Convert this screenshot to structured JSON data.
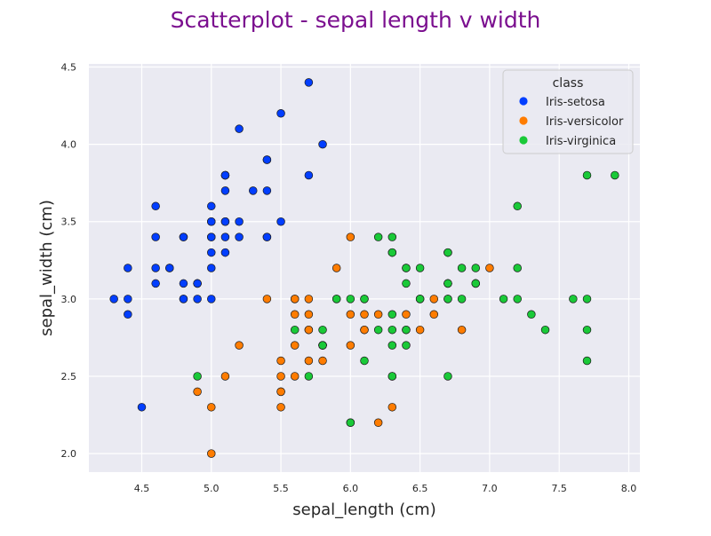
{
  "chart_data": {
    "type": "scatter",
    "title": "Scatterplot - sepal length v width",
    "title_color": "#7b0f8f",
    "xlabel": "sepal_length (cm)",
    "ylabel": "sepal_width (cm)",
    "xlim": [
      4.12,
      8.08
    ],
    "ylim": [
      1.88,
      4.52
    ],
    "xticks": [
      "4.5",
      "5.0",
      "5.5",
      "6.0",
      "6.5",
      "7.0",
      "7.5",
      "8.0"
    ],
    "yticks": [
      "2.0",
      "2.5",
      "3.0",
      "3.5",
      "4.0",
      "4.5"
    ],
    "grid": true,
    "background": "#eaeaf2",
    "legend": {
      "title": "class",
      "placement": "top-right"
    },
    "series": [
      {
        "name": "Iris-setosa",
        "color": "#023eff",
        "points": [
          [
            5.1,
            3.5
          ],
          [
            4.9,
            3.0
          ],
          [
            4.7,
            3.2
          ],
          [
            4.6,
            3.1
          ],
          [
            5.0,
            3.6
          ],
          [
            5.4,
            3.9
          ],
          [
            4.6,
            3.4
          ],
          [
            5.0,
            3.4
          ],
          [
            4.4,
            2.9
          ],
          [
            4.9,
            3.1
          ],
          [
            5.4,
            3.7
          ],
          [
            4.8,
            3.4
          ],
          [
            4.8,
            3.0
          ],
          [
            4.3,
            3.0
          ],
          [
            5.8,
            4.0
          ],
          [
            5.7,
            4.4
          ],
          [
            5.4,
            3.9
          ],
          [
            5.1,
            3.5
          ],
          [
            5.7,
            3.8
          ],
          [
            5.1,
            3.8
          ],
          [
            5.4,
            3.4
          ],
          [
            5.1,
            3.7
          ],
          [
            4.6,
            3.6
          ],
          [
            5.1,
            3.3
          ],
          [
            4.8,
            3.4
          ],
          [
            5.0,
            3.0
          ],
          [
            5.0,
            3.4
          ],
          [
            5.2,
            3.5
          ],
          [
            5.2,
            3.4
          ],
          [
            4.7,
            3.2
          ],
          [
            4.8,
            3.1
          ],
          [
            5.4,
            3.4
          ],
          [
            5.2,
            4.1
          ],
          [
            5.5,
            4.2
          ],
          [
            4.9,
            3.1
          ],
          [
            5.0,
            3.2
          ],
          [
            5.5,
            3.5
          ],
          [
            4.9,
            3.1
          ],
          [
            4.4,
            3.0
          ],
          [
            5.1,
            3.4
          ],
          [
            5.0,
            3.5
          ],
          [
            4.5,
            2.3
          ],
          [
            4.4,
            3.2
          ],
          [
            5.0,
            3.5
          ],
          [
            5.1,
            3.8
          ],
          [
            4.8,
            3.0
          ],
          [
            5.1,
            3.8
          ],
          [
            4.6,
            3.2
          ],
          [
            5.3,
            3.7
          ],
          [
            5.0,
            3.3
          ]
        ]
      },
      {
        "name": "Iris-versicolor",
        "color": "#ff7c00",
        "points": [
          [
            7.0,
            3.2
          ],
          [
            6.4,
            3.2
          ],
          [
            6.9,
            3.1
          ],
          [
            5.5,
            2.3
          ],
          [
            6.5,
            2.8
          ],
          [
            5.7,
            2.8
          ],
          [
            6.3,
            3.3
          ],
          [
            4.9,
            2.4
          ],
          [
            6.6,
            2.9
          ],
          [
            5.2,
            2.7
          ],
          [
            5.0,
            2.0
          ],
          [
            5.9,
            3.0
          ],
          [
            6.0,
            2.2
          ],
          [
            6.1,
            2.9
          ],
          [
            5.6,
            2.9
          ],
          [
            6.7,
            3.1
          ],
          [
            5.6,
            3.0
          ],
          [
            5.8,
            2.7
          ],
          [
            6.2,
            2.2
          ],
          [
            5.6,
            2.5
          ],
          [
            5.9,
            3.2
          ],
          [
            6.1,
            2.8
          ],
          [
            6.3,
            2.5
          ],
          [
            6.1,
            2.8
          ],
          [
            6.4,
            2.9
          ],
          [
            6.6,
            3.0
          ],
          [
            6.8,
            2.8
          ],
          [
            6.7,
            3.0
          ],
          [
            6.0,
            2.9
          ],
          [
            5.7,
            2.6
          ],
          [
            5.5,
            2.4
          ],
          [
            5.5,
            2.4
          ],
          [
            5.8,
            2.7
          ],
          [
            6.0,
            2.7
          ],
          [
            5.4,
            3.0
          ],
          [
            6.0,
            3.4
          ],
          [
            6.7,
            3.1
          ],
          [
            6.3,
            2.3
          ],
          [
            5.6,
            3.0
          ],
          [
            5.5,
            2.5
          ],
          [
            5.5,
            2.6
          ],
          [
            6.1,
            3.0
          ],
          [
            5.8,
            2.6
          ],
          [
            5.0,
            2.3
          ],
          [
            5.6,
            2.7
          ],
          [
            5.7,
            3.0
          ],
          [
            5.7,
            2.9
          ],
          [
            6.2,
            2.9
          ],
          [
            5.1,
            2.5
          ],
          [
            5.7,
            2.8
          ]
        ]
      },
      {
        "name": "Iris-virginica",
        "color": "#1ac938",
        "points": [
          [
            6.3,
            3.3
          ],
          [
            5.8,
            2.7
          ],
          [
            7.1,
            3.0
          ],
          [
            6.3,
            2.9
          ],
          [
            6.5,
            3.0
          ],
          [
            7.6,
            3.0
          ],
          [
            4.9,
            2.5
          ],
          [
            7.3,
            2.9
          ],
          [
            6.7,
            2.5
          ],
          [
            7.2,
            3.6
          ],
          [
            6.5,
            3.2
          ],
          [
            6.4,
            2.7
          ],
          [
            6.8,
            3.0
          ],
          [
            5.7,
            2.5
          ],
          [
            5.8,
            2.8
          ],
          [
            6.4,
            3.2
          ],
          [
            6.5,
            3.0
          ],
          [
            7.7,
            3.8
          ],
          [
            7.7,
            2.6
          ],
          [
            6.0,
            2.2
          ],
          [
            6.9,
            3.2
          ],
          [
            5.6,
            2.8
          ],
          [
            7.7,
            2.8
          ],
          [
            6.3,
            2.7
          ],
          [
            6.7,
            3.3
          ],
          [
            7.2,
            3.2
          ],
          [
            6.2,
            2.8
          ],
          [
            6.1,
            3.0
          ],
          [
            6.4,
            2.8
          ],
          [
            7.2,
            3.0
          ],
          [
            7.4,
            2.8
          ],
          [
            7.9,
            3.8
          ],
          [
            6.4,
            2.8
          ],
          [
            6.3,
            2.8
          ],
          [
            6.1,
            2.6
          ],
          [
            7.7,
            3.0
          ],
          [
            6.3,
            3.4
          ],
          [
            6.4,
            3.1
          ],
          [
            6.0,
            3.0
          ],
          [
            6.9,
            3.1
          ],
          [
            6.7,
            3.1
          ],
          [
            6.9,
            3.1
          ],
          [
            5.8,
            2.7
          ],
          [
            6.8,
            3.2
          ],
          [
            6.7,
            3.3
          ],
          [
            6.7,
            3.0
          ],
          [
            6.3,
            2.5
          ],
          [
            6.5,
            3.0
          ],
          [
            6.2,
            3.4
          ],
          [
            5.9,
            3.0
          ]
        ]
      }
    ]
  }
}
